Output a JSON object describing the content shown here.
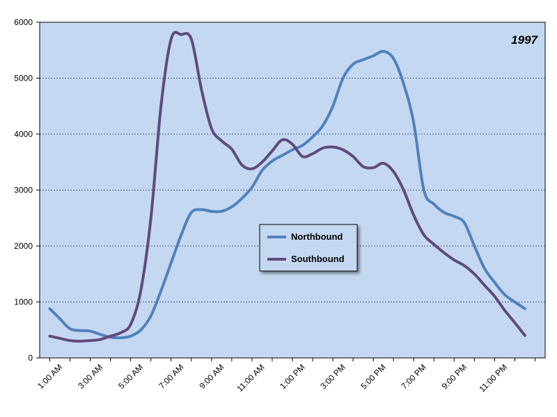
{
  "chart_data": {
    "type": "line",
    "title": "1997",
    "xlabel": "",
    "ylabel": "",
    "ylim": [
      0,
      6000
    ],
    "yticks": [
      0,
      1000,
      2000,
      3000,
      4000,
      5000,
      6000
    ],
    "grid": "horizontal dashed",
    "legend_position": "center",
    "plot_background": "#c5d8f1",
    "x_tick_labels": [
      "1:00 AM",
      "3:00 AM",
      "5:00 AM",
      "7:00 AM",
      "9:00 AM",
      "11:00 AM",
      "1:00 PM",
      "3:00 PM",
      "5:00 PM",
      "7:00 PM",
      "9:00 PM",
      "11:00 PM"
    ],
    "x": [
      0.5,
      1,
      1.5,
      2,
      2.5,
      3,
      3.5,
      4,
      4.5,
      5,
      5.5,
      6,
      6.5,
      7,
      7.5,
      8,
      8.5,
      9,
      9.5,
      10,
      10.5,
      11,
      11.5,
      12,
      12.5,
      13,
      13.5,
      14,
      14.5,
      15,
      15.5,
      16,
      16.5,
      17,
      17.5,
      18,
      18.5,
      19,
      19.5,
      20,
      20.5,
      21,
      21.5,
      22,
      22.5,
      23,
      23.5,
      24
    ],
    "series": [
      {
        "name": "Northbound",
        "color": "#4f81bd",
        "values": [
          880,
          700,
          520,
          490,
          480,
          420,
          370,
          360,
          390,
          500,
          750,
          1200,
          1700,
          2200,
          2600,
          2650,
          2620,
          2620,
          2700,
          2850,
          3050,
          3350,
          3520,
          3620,
          3720,
          3800,
          3950,
          4150,
          4500,
          5000,
          5250,
          5330,
          5400,
          5480,
          5350,
          4900,
          4200,
          3000,
          2750,
          2600,
          2530,
          2420,
          2000,
          1600,
          1350,
          1130,
          1000,
          880
        ]
      },
      {
        "name": "Southbound",
        "color": "#604a7b",
        "values": [
          390,
          350,
          310,
          300,
          310,
          330,
          390,
          450,
          600,
          1200,
          2500,
          4500,
          5700,
          5780,
          5700,
          4800,
          4100,
          3880,
          3730,
          3450,
          3380,
          3500,
          3700,
          3900,
          3820,
          3600,
          3650,
          3750,
          3770,
          3720,
          3600,
          3420,
          3400,
          3480,
          3330,
          3000,
          2550,
          2200,
          2030,
          1880,
          1750,
          1650,
          1500,
          1300,
          1100,
          850,
          630,
          400
        ]
      }
    ]
  }
}
